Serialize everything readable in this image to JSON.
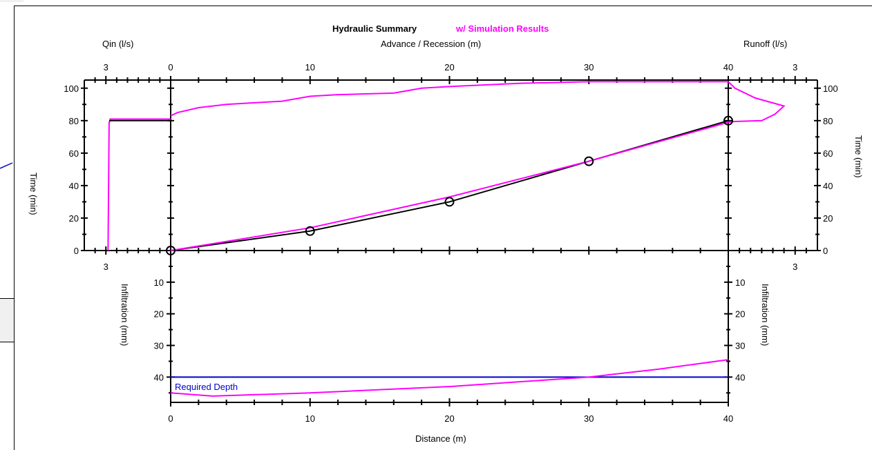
{
  "chart_data": {
    "type": "line",
    "title": "Hydraulic Summary",
    "subtitle": "w/ Simulation Results",
    "colors": {
      "measured": "#000000",
      "simulated": "#ff00ff",
      "required": "#0000cc"
    },
    "panels": {
      "qin": {
        "label": "Qin (l/s)",
        "xlim": [
          4,
          0
        ],
        "ticks": [
          "3"
        ],
        "ylabel": "Time (min)",
        "series": [
          {
            "color": "#ff00ff",
            "points": [
              [
                0,
                81
              ],
              [
                2.8,
                81
              ],
              [
                2.8,
                80
              ],
              [
                2.85,
                79
              ],
              [
                2.9,
                0
              ]
            ]
          },
          {
            "color": "#000000",
            "points": [
              [
                0,
                80
              ],
              [
                2.85,
                80
              ]
            ]
          }
        ]
      },
      "advance": {
        "label": "Advance / Recession (m)",
        "xlim": [
          0,
          40
        ],
        "ylim": [
          0,
          105
        ],
        "xticks": [
          "0",
          "10",
          "20",
          "30",
          "40"
        ],
        "yticks": [
          "0",
          "20",
          "40",
          "60",
          "80",
          "100"
        ],
        "observed_advance": {
          "x": [
            0,
            10,
            20,
            30,
            40
          ],
          "y": [
            0,
            12,
            30,
            55,
            80
          ]
        },
        "simulated_advance": {
          "x": [
            0,
            10,
            20,
            30,
            40
          ],
          "y": [
            0,
            14,
            33,
            55,
            79
          ]
        },
        "simulated_recession": {
          "x": [
            0,
            0.5,
            2,
            4,
            6,
            8,
            10,
            12,
            14,
            16,
            18,
            20,
            25,
            30,
            35,
            40
          ],
          "y": [
            83,
            85,
            88,
            90,
            91,
            92,
            95,
            96,
            96.5,
            97,
            100,
            101,
            103,
            104,
            104,
            104
          ]
        }
      },
      "runoff": {
        "label": "Runoff (l/s)",
        "xlim": [
          0,
          4
        ],
        "ticks": [
          "3"
        ],
        "ylabel": "Time (min)",
        "series": [
          {
            "color": "#ff00ff",
            "points": [
              [
                0,
                104
              ],
              [
                0.3,
                100
              ],
              [
                1.2,
                94
              ],
              [
                2.5,
                89
              ],
              [
                2.1,
                84
              ],
              [
                1.5,
                80
              ],
              [
                0.3,
                79.5
              ],
              [
                0,
                79
              ]
            ]
          }
        ]
      },
      "infiltration": {
        "xlabel": "Distance (m)",
        "ylabel": "Infiltration (mm)",
        "ylim": [
          0,
          48
        ],
        "xticks": [
          "0",
          "10",
          "20",
          "30",
          "40"
        ],
        "yticks": [
          "10",
          "20",
          "30",
          "40"
        ],
        "required_depth_label": "Required Depth",
        "required_depth": 40,
        "simulated": {
          "x": [
            0,
            3,
            10,
            20,
            30,
            35,
            40
          ],
          "y": [
            45,
            46,
            45,
            43,
            40,
            37.5,
            34.5
          ]
        }
      }
    }
  }
}
